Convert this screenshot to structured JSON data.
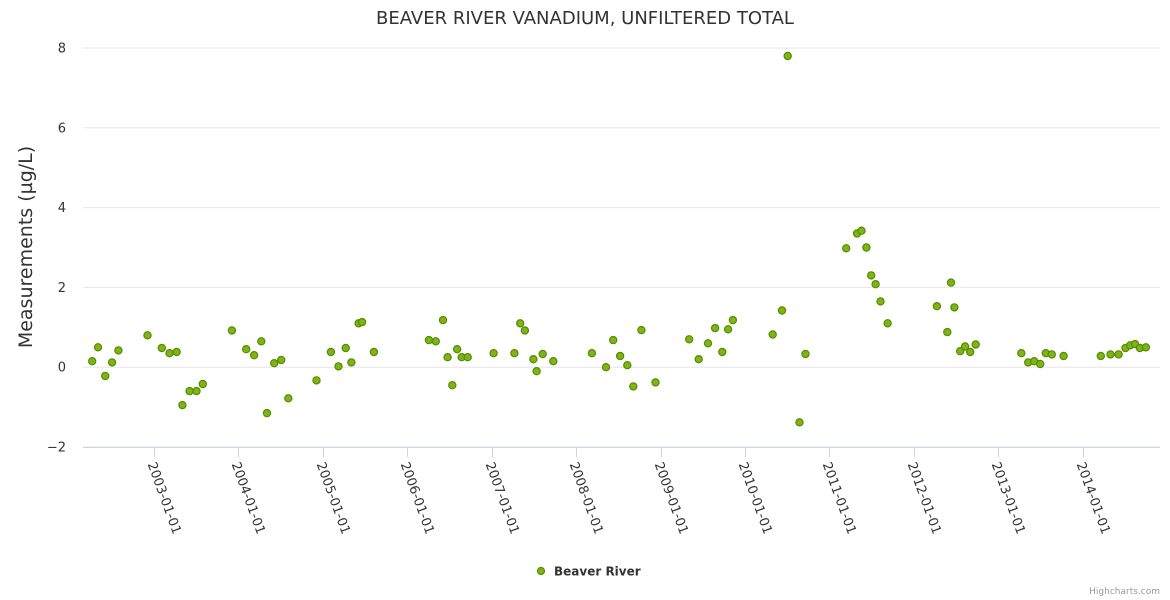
{
  "chart_data": {
    "type": "scatter",
    "title": "BEAVER RIVER VANADIUM, UNFILTERED TOTAL",
    "ylabel": "Measurements (µg/L)",
    "xlabel": "",
    "ylim": [
      -2,
      8
    ],
    "xlim": [
      "2002-03-01",
      "2014-12-01"
    ],
    "yticks": [
      -2,
      0,
      2,
      4,
      6,
      8
    ],
    "ytick_labels": [
      "−2",
      "0",
      "2",
      "4",
      "6",
      "8"
    ],
    "xticks": [
      "2003-01-01",
      "2004-01-01",
      "2005-01-01",
      "2006-01-01",
      "2007-01-01",
      "2008-01-01",
      "2009-01-01",
      "2010-01-01",
      "2011-01-01",
      "2012-01-01",
      "2013-01-01",
      "2014-01-01"
    ],
    "grid": true,
    "legend_position": "bottom-center",
    "colors": {
      "marker_fill": "#7cb518",
      "marker_stroke": "#5a8a00"
    },
    "series": [
      {
        "name": "Beaver River",
        "points": [
          [
            "2002-04-10",
            0.15
          ],
          [
            "2002-05-05",
            0.5
          ],
          [
            "2002-06-05",
            -0.22
          ],
          [
            "2002-07-05",
            0.12
          ],
          [
            "2002-08-01",
            0.42
          ],
          [
            "2002-12-05",
            0.8
          ],
          [
            "2003-02-05",
            0.48
          ],
          [
            "2003-03-10",
            0.35
          ],
          [
            "2003-04-10",
            0.38
          ],
          [
            "2003-05-05",
            -0.95
          ],
          [
            "2003-06-05",
            -0.6
          ],
          [
            "2003-07-05",
            -0.6
          ],
          [
            "2003-08-01",
            -0.42
          ],
          [
            "2003-12-05",
            0.92
          ],
          [
            "2004-02-05",
            0.45
          ],
          [
            "2004-03-10",
            0.3
          ],
          [
            "2004-04-10",
            0.65
          ],
          [
            "2004-05-05",
            -1.15
          ],
          [
            "2004-06-05",
            0.1
          ],
          [
            "2004-07-05",
            0.18
          ],
          [
            "2004-08-05",
            -0.78
          ],
          [
            "2004-12-05",
            -0.33
          ],
          [
            "2005-02-05",
            0.38
          ],
          [
            "2005-03-10",
            0.02
          ],
          [
            "2005-04-10",
            0.48
          ],
          [
            "2005-05-05",
            0.12
          ],
          [
            "2005-06-05",
            1.1
          ],
          [
            "2005-06-20",
            1.13
          ],
          [
            "2005-08-10",
            0.38
          ],
          [
            "2006-04-05",
            0.68
          ],
          [
            "2006-05-05",
            0.65
          ],
          [
            "2006-06-05",
            1.18
          ],
          [
            "2006-06-25",
            0.25
          ],
          [
            "2006-07-15",
            -0.45
          ],
          [
            "2006-08-05",
            0.45
          ],
          [
            "2006-08-25",
            0.25
          ],
          [
            "2006-09-20",
            0.25
          ],
          [
            "2007-01-10",
            0.35
          ],
          [
            "2007-04-10",
            0.35
          ],
          [
            "2007-05-05",
            1.1
          ],
          [
            "2007-05-25",
            0.92
          ],
          [
            "2007-07-01",
            0.2
          ],
          [
            "2007-07-15",
            -0.1
          ],
          [
            "2007-08-10",
            0.33
          ],
          [
            "2007-09-25",
            0.15
          ],
          [
            "2008-03-10",
            0.35
          ],
          [
            "2008-05-10",
            0.0
          ],
          [
            "2008-06-10",
            0.68
          ],
          [
            "2008-07-10",
            0.28
          ],
          [
            "2008-08-10",
            0.05
          ],
          [
            "2008-09-05",
            -0.48
          ],
          [
            "2008-10-10",
            0.93
          ],
          [
            "2008-12-10",
            -0.38
          ],
          [
            "2009-05-05",
            0.7
          ],
          [
            "2009-06-15",
            0.2
          ],
          [
            "2009-07-25",
            0.6
          ],
          [
            "2009-08-25",
            0.98
          ],
          [
            "2009-09-25",
            0.38
          ],
          [
            "2009-10-20",
            0.95
          ],
          [
            "2009-11-10",
            1.18
          ],
          [
            "2010-05-01",
            0.82
          ],
          [
            "2010-06-10",
            1.42
          ],
          [
            "2010-07-05",
            7.8
          ],
          [
            "2010-08-25",
            -1.38
          ],
          [
            "2010-09-20",
            0.33
          ],
          [
            "2011-03-15",
            2.98
          ],
          [
            "2011-05-01",
            3.35
          ],
          [
            "2011-05-20",
            3.42
          ],
          [
            "2011-06-10",
            3.0
          ],
          [
            "2011-07-01",
            2.3
          ],
          [
            "2011-07-20",
            2.08
          ],
          [
            "2011-08-10",
            1.65
          ],
          [
            "2011-09-10",
            1.1
          ],
          [
            "2012-04-10",
            1.53
          ],
          [
            "2012-05-25",
            0.88
          ],
          [
            "2012-06-10",
            2.12
          ],
          [
            "2012-06-25",
            1.5
          ],
          [
            "2012-07-20",
            0.4
          ],
          [
            "2012-08-10",
            0.52
          ],
          [
            "2012-09-01",
            0.38
          ],
          [
            "2012-09-25",
            0.57
          ],
          [
            "2013-04-10",
            0.35
          ],
          [
            "2013-05-10",
            0.12
          ],
          [
            "2013-06-05",
            0.15
          ],
          [
            "2013-07-01",
            0.08
          ],
          [
            "2013-07-25",
            0.35
          ],
          [
            "2013-08-20",
            0.32
          ],
          [
            "2013-10-10",
            0.28
          ],
          [
            "2014-03-20",
            0.28
          ],
          [
            "2014-05-01",
            0.32
          ],
          [
            "2014-06-05",
            0.32
          ],
          [
            "2014-07-05",
            0.48
          ],
          [
            "2014-07-25",
            0.55
          ],
          [
            "2014-08-15",
            0.58
          ],
          [
            "2014-09-05",
            0.48
          ],
          [
            "2014-10-01",
            0.5
          ]
        ]
      }
    ],
    "credits": "Highcharts.com"
  }
}
